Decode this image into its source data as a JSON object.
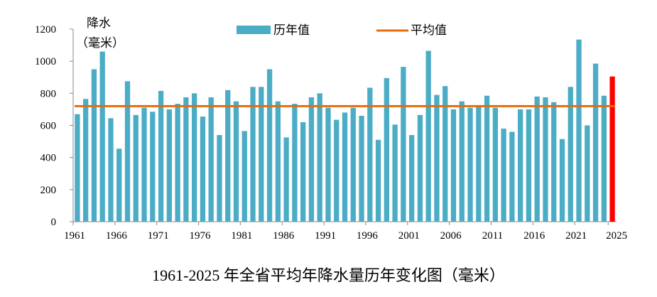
{
  "caption": "1961-2025 年全省平均年降水量历年变化图（毫米）",
  "chart_data": {
    "type": "bar",
    "ylabel_line1": "降水",
    "ylabel_line2": "（毫米）",
    "ylim": [
      0,
      1200
    ],
    "yticks": [
      0,
      200,
      400,
      600,
      800,
      1000,
      1200
    ],
    "xtick_labels": [
      "1961",
      "1966",
      "1971",
      "1976",
      "1981",
      "1986",
      "1991",
      "1996",
      "2001",
      "2006",
      "2011",
      "2016",
      "2021",
      "2025"
    ],
    "legend": {
      "bar_label": "历年值",
      "line_label": "平均值",
      "placement": "top"
    },
    "colors": {
      "bar": "#4bacc6",
      "highlight": "#ff0000",
      "average": "#e46c0a"
    },
    "average": 720,
    "years": [
      1961,
      1962,
      1963,
      1964,
      1965,
      1966,
      1967,
      1968,
      1969,
      1970,
      1971,
      1972,
      1973,
      1974,
      1975,
      1976,
      1977,
      1978,
      1979,
      1980,
      1981,
      1982,
      1983,
      1984,
      1985,
      1986,
      1987,
      1988,
      1989,
      1990,
      1991,
      1992,
      1993,
      1994,
      1995,
      1996,
      1997,
      1998,
      1999,
      2000,
      2001,
      2002,
      2003,
      2004,
      2005,
      2006,
      2007,
      2008,
      2009,
      2010,
      2011,
      2012,
      2013,
      2014,
      2015,
      2016,
      2017,
      2018,
      2019,
      2020,
      2021,
      2022,
      2023,
      2024,
      2025
    ],
    "values": [
      670,
      765,
      950,
      1060,
      645,
      455,
      875,
      665,
      710,
      685,
      815,
      700,
      735,
      775,
      800,
      655,
      775,
      540,
      820,
      750,
      565,
      840,
      840,
      950,
      750,
      525,
      735,
      620,
      775,
      800,
      710,
      635,
      680,
      710,
      660,
      835,
      510,
      895,
      605,
      965,
      540,
      665,
      1065,
      790,
      845,
      700,
      750,
      710,
      720,
      785,
      710,
      580,
      560,
      700,
      700,
      780,
      775,
      745,
      515,
      840,
      1135,
      600,
      985,
      785,
      905
    ],
    "highlight_year": 2025
  }
}
